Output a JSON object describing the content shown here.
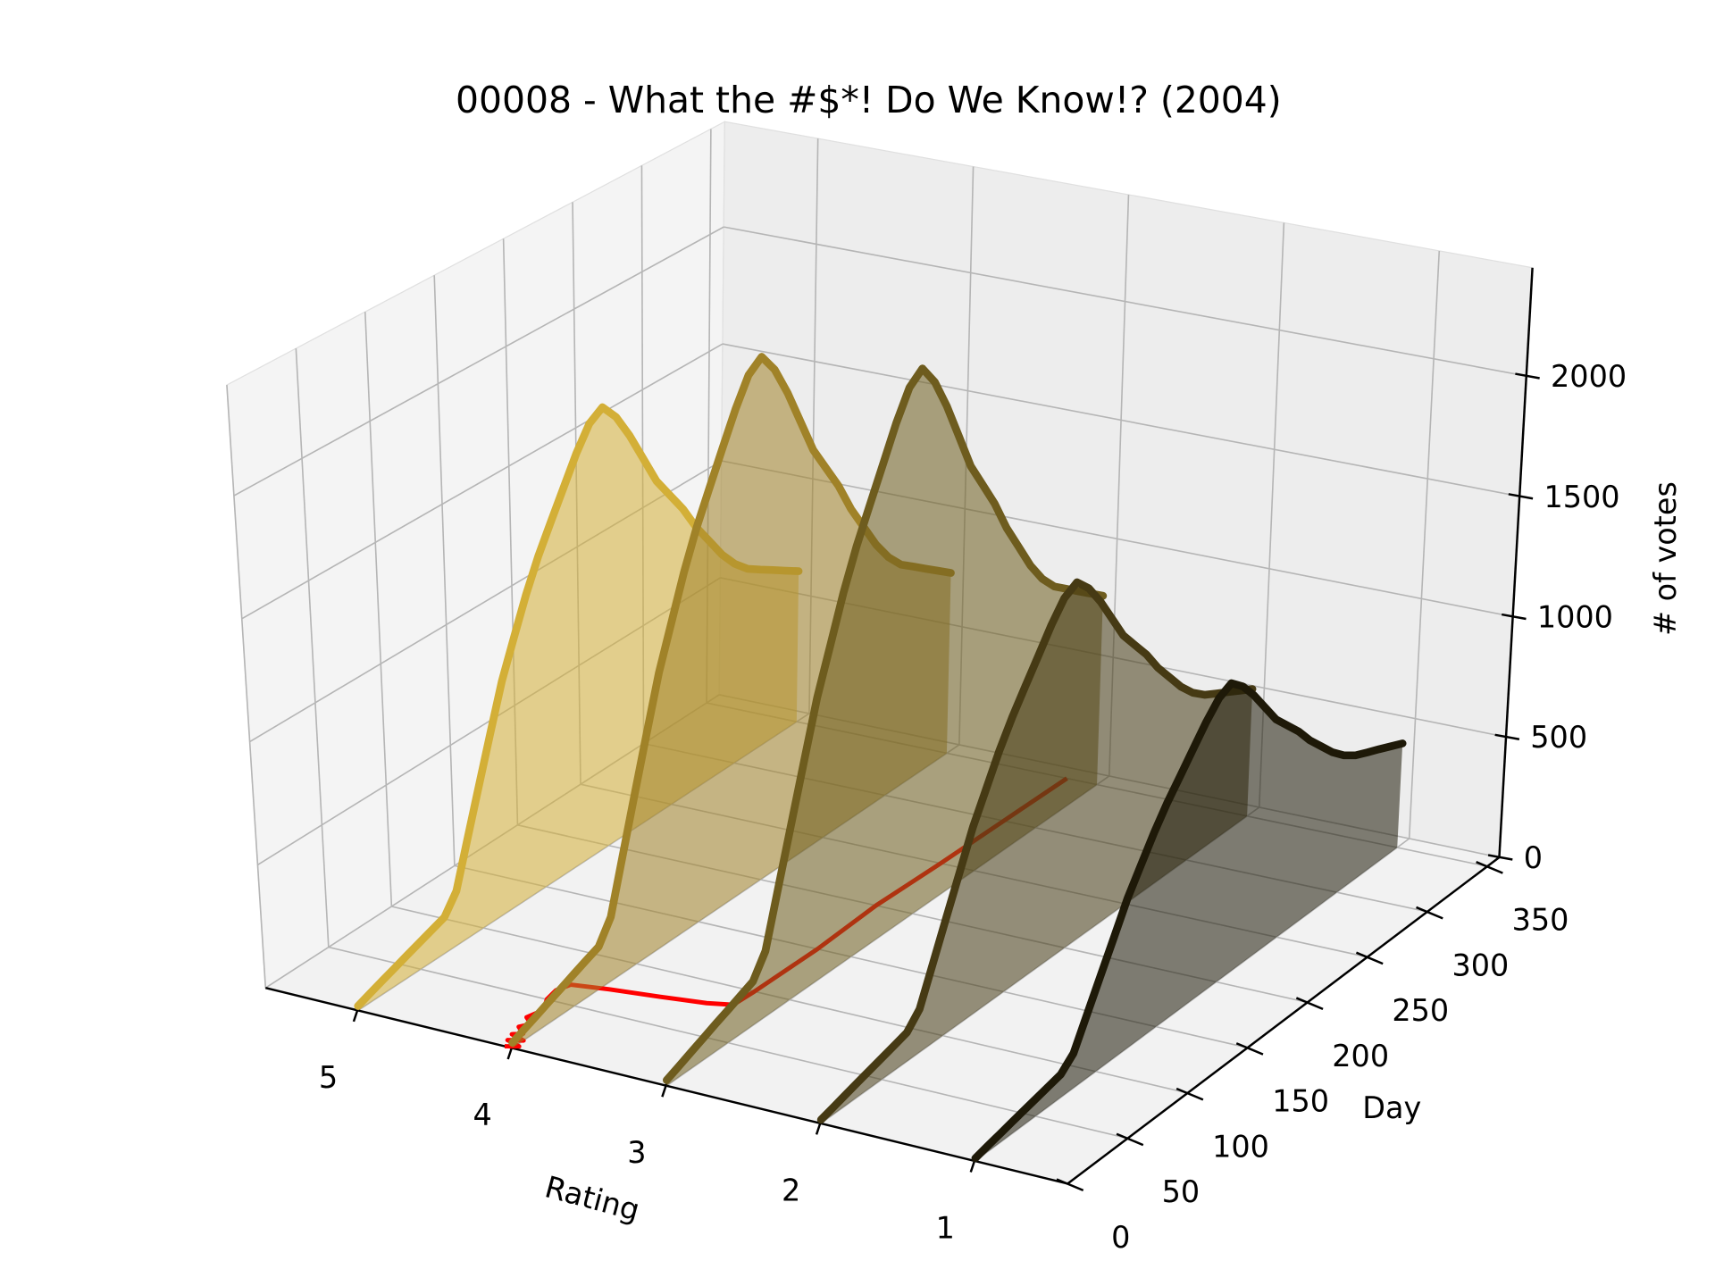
{
  "chart_data": {
    "type": "line3d",
    "title": "00008 - What the #$*! Do We Know!? (2004)",
    "xlabel": "Rating",
    "ylabel": "Day",
    "zlabel": "# of votes",
    "xlim": [
      5.6,
      0.4
    ],
    "xticks": [
      5,
      4,
      3,
      2,
      1
    ],
    "ylim": [
      0,
      360
    ],
    "yticks": [
      0,
      50,
      100,
      150,
      200,
      250,
      300,
      350
    ],
    "zlim": [
      0,
      2450
    ],
    "zticks": [
      0,
      500,
      1000,
      1500,
      2000
    ],
    "grid": true,
    "x": [
      0,
      10,
      20,
      30,
      40,
      50,
      60,
      70,
      80,
      90,
      100,
      110,
      120,
      130,
      140,
      150,
      160,
      170,
      180,
      190,
      200,
      210,
      220,
      230,
      240,
      250,
      260,
      270,
      280,
      290,
      300,
      310,
      320,
      330,
      340,
      350
    ],
    "series": [
      {
        "rating": 5,
        "color": "#d3af37",
        "values": [
          18,
          37,
          55,
          73,
          92,
          110,
          128,
          146,
          220,
          403,
          586,
          769,
          952,
          1098,
          1244,
          1373,
          1482,
          1592,
          1702,
          1793,
          1830,
          1757,
          1647,
          1519,
          1391,
          1299,
          1208,
          1098,
          1007,
          915,
          842,
          787,
          750,
          714,
          677,
          641
        ]
      },
      {
        "rating": 4,
        "color": "#a08228",
        "values": [
          22,
          44,
          65,
          87,
          109,
          131,
          153,
          174,
          262,
          480,
          698,
          916,
          1134,
          1308,
          1482,
          1635,
          1766,
          1897,
          2027,
          2136,
          2180,
          2093,
          1962,
          1809,
          1657,
          1548,
          1439,
          1308,
          1199,
          1090,
          1003,
          937,
          894,
          850,
          807,
          763
        ]
      },
      {
        "rating": 3,
        "color": "#6e5c1e",
        "values": [
          23,
          45,
          68,
          91,
          114,
          136,
          159,
          182,
          272,
          499,
          726,
          953,
          1180,
          1362,
          1544,
          1703,
          1839,
          1975,
          2111,
          2225,
          2270,
          2179,
          2043,
          1884,
          1725,
          1612,
          1498,
          1362,
          1249,
          1135,
          1044,
          976,
          931,
          885,
          840,
          795
        ]
      },
      {
        "rating": 2,
        "color": "#463a14",
        "values": [
          15,
          30,
          46,
          61,
          76,
          91,
          106,
          122,
          182,
          334,
          486,
          638,
          790,
          912,
          1034,
          1140,
          1231,
          1322,
          1414,
          1490,
          1520,
          1459,
          1368,
          1262,
          1155,
          1079,
          1003,
          912,
          836,
          760,
          699,
          654,
          623,
          593,
          562,
          532
        ]
      },
      {
        "rating": 1,
        "color": "#1e1908",
        "values": [
          12,
          25,
          37,
          50,
          62,
          74,
          87,
          99,
          149,
          273,
          397,
          521,
          645,
          744,
          843,
          930,
          1004,
          1079,
          1153,
          1215,
          1240,
          1190,
          1116,
          1029,
          942,
          880,
          818,
          744,
          682,
          620,
          570,
          533,
          508,
          484,
          459,
          434
        ]
      }
    ],
    "overlay": {
      "color": "#ff0000",
      "x": [
        0,
        3,
        6,
        9,
        12,
        15,
        20,
        25,
        30,
        40,
        50,
        60,
        68,
        72,
        76,
        80,
        84,
        100,
        150,
        200,
        250,
        300,
        350
      ],
      "values": [
        4.05,
        3.98,
        4.08,
        4.0,
        4.1,
        4.05,
        4.12,
        4.08,
        4.15,
        4.12,
        4.18,
        4.2,
        4.17,
        3.95,
        3.65,
        3.38,
        3.24,
        3.23,
        3.22,
        3.24,
        3.22,
        3.21,
        3.2
      ]
    }
  }
}
